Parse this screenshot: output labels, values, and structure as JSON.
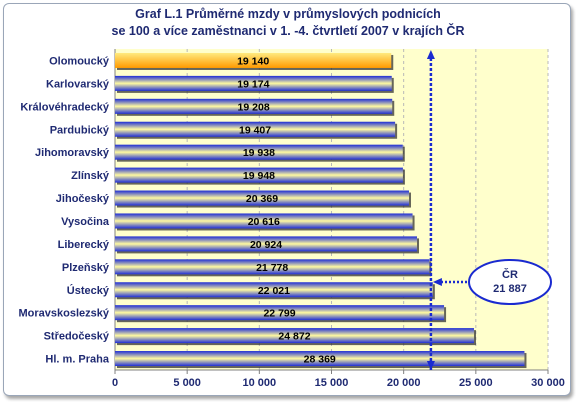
{
  "title": "Graf L.1 Průměrné mzdy v průmyslových podnicích\nse 100 a více zaměstnanci v 1. -4. čtvrtletí 2007 v krajích ČR",
  "colors": {
    "plot_background": "#ffffcc",
    "bar_dark": "#1e2dd6",
    "bar_light": "#fffaa0",
    "highlight_bar_light": "#ffeb80",
    "highlight_bar_dark": "#ff9a00",
    "label_text": "#1f2a72",
    "reference_line": "#1a2ad0"
  },
  "chart_data": {
    "type": "bar",
    "orientation": "horizontal",
    "categories": [
      "Olomoucký",
      "Karlovarský",
      "Královéhradecký",
      "Pardubický",
      "Jihomoravský",
      "Zlínský",
      "Jihočeský",
      "Vysočina",
      "Liberecký",
      "Plzeňský",
      "Ústecký",
      "Moravskoslezský",
      "Středočeský",
      "Hl. m. Praha"
    ],
    "values": [
      19140,
      19174,
      19208,
      19407,
      19938,
      19948,
      20369,
      20616,
      20924,
      21778,
      22021,
      22799,
      24872,
      28369
    ],
    "value_labels": [
      "19 140",
      "19 174",
      "19 208",
      "19 407",
      "19 938",
      "19 948",
      "20 369",
      "20 616",
      "20 924",
      "21 778",
      "22 021",
      "22 799",
      "24 872",
      "28 369"
    ],
    "highlighted_category": "Olomoucký",
    "xlim": [
      0,
      30000
    ],
    "x_ticks": [
      0,
      5000,
      10000,
      15000,
      20000,
      25000,
      30000
    ],
    "x_tick_labels": [
      "0",
      "5 000",
      "10 000",
      "15 000",
      "20 000",
      "25 000",
      "30 000"
    ],
    "grid": "vertical dashed",
    "reference_line": {
      "value": 21887,
      "label": "ČR",
      "value_label": "21 887"
    }
  }
}
